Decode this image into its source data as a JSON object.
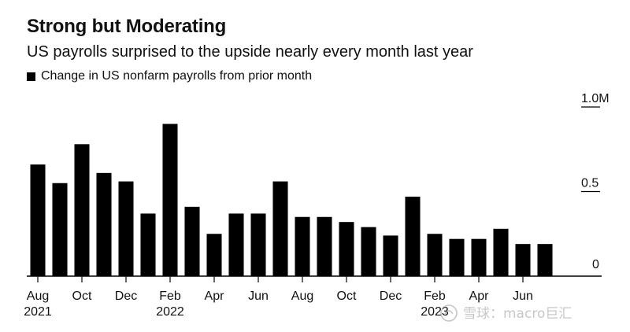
{
  "title": "Strong but Moderating",
  "subtitle": "US payrolls surprised to the upside nearly every month last year",
  "legend_label": "Change in US nonfarm payrolls from prior month",
  "watermark": "雪球：macro巨汇",
  "colors": {
    "bar": "#000000",
    "background": "#ffffff",
    "text": "#111111"
  },
  "chart_data": {
    "type": "bar",
    "title": "Strong but Moderating",
    "subtitle": "US payrolls surprised to the upside nearly every month last year",
    "xlabel": "",
    "ylabel": "",
    "ylim": [
      0,
      1.0
    ],
    "y_ticks": [
      {
        "value": 0,
        "label": "0"
      },
      {
        "value": 0.5,
        "label": "0.5"
      },
      {
        "value": 1.0,
        "label": "1.0M"
      }
    ],
    "x_tick_labels": [
      {
        "index": 0,
        "month": "Aug",
        "year": "2021"
      },
      {
        "index": 2,
        "month": "Oct",
        "year": ""
      },
      {
        "index": 4,
        "month": "Dec",
        "year": ""
      },
      {
        "index": 6,
        "month": "Feb",
        "year": "2022"
      },
      {
        "index": 8,
        "month": "Apr",
        "year": ""
      },
      {
        "index": 10,
        "month": "Jun",
        "year": ""
      },
      {
        "index": 12,
        "month": "Aug",
        "year": ""
      },
      {
        "index": 14,
        "month": "Oct",
        "year": ""
      },
      {
        "index": 16,
        "month": "Dec",
        "year": ""
      },
      {
        "index": 18,
        "month": "Feb",
        "year": "2023"
      },
      {
        "index": 20,
        "month": "Apr",
        "year": ""
      },
      {
        "index": 22,
        "month": "Jun",
        "year": ""
      }
    ],
    "categories": [
      "Aug 2021",
      "Sep 2021",
      "Oct 2021",
      "Nov 2021",
      "Dec 2021",
      "Jan 2022",
      "Feb 2022",
      "Mar 2022",
      "Apr 2022",
      "May 2022",
      "Jun 2022",
      "Jul 2022",
      "Aug 2022",
      "Sep 2022",
      "Oct 2022",
      "Nov 2022",
      "Dec 2022",
      "Jan 2023",
      "Feb 2023",
      "Mar 2023",
      "Apr 2023",
      "May 2023",
      "Jun 2023",
      "Jul 2023"
    ],
    "series": [
      {
        "name": "Change in US nonfarm payrolls from prior month",
        "values": [
          0.66,
          0.55,
          0.78,
          0.61,
          0.56,
          0.37,
          0.9,
          0.41,
          0.25,
          0.37,
          0.37,
          0.56,
          0.35,
          0.35,
          0.32,
          0.29,
          0.24,
          0.47,
          0.25,
          0.22,
          0.22,
          0.28,
          0.19,
          0.19
        ]
      }
    ],
    "legend_position": "top-left",
    "grid": false
  }
}
